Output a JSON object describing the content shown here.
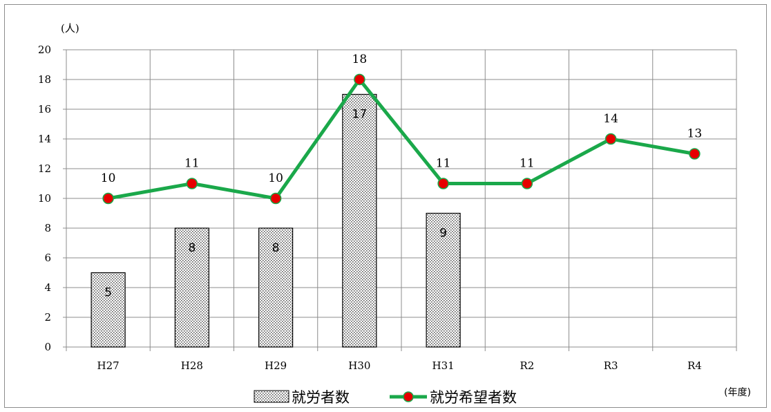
{
  "chart_data": {
    "type": "bar+line",
    "categories": [
      "H27",
      "H28",
      "H29",
      "H30",
      "H31",
      "R2",
      "R3",
      "R4"
    ],
    "series": [
      {
        "name": "就労者数",
        "type": "bar",
        "values": [
          5,
          8,
          8,
          17,
          9,
          null,
          null,
          null
        ],
        "pattern": "dotted",
        "color": "#000000"
      },
      {
        "name": "就労希望者数",
        "type": "line",
        "values": [
          10,
          11,
          10,
          18,
          11,
          11,
          14,
          13
        ],
        "line_color": "#1aa84a",
        "marker_color": "#e60000"
      }
    ],
    "y_unit_label": "(人)",
    "x_unit_label": "(年度)",
    "ylim": [
      0,
      20
    ],
    "yticks": [
      0,
      2,
      4,
      6,
      8,
      10,
      12,
      14,
      16,
      18,
      20
    ],
    "grid": true,
    "legend_position": "bottom"
  }
}
